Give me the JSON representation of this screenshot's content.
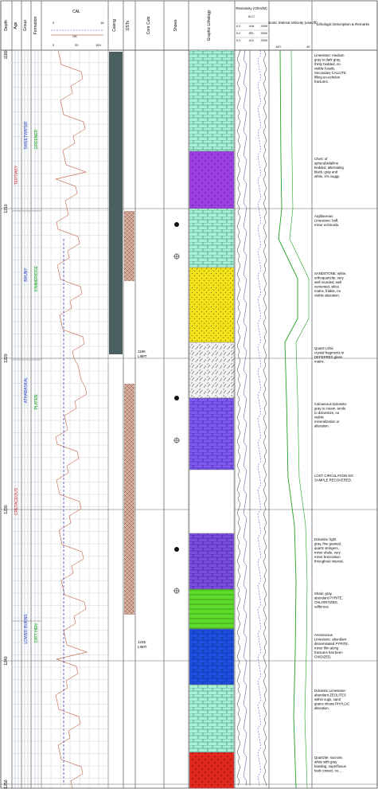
{
  "columns": {
    "depth": "Depth",
    "age": "Age",
    "group": "Group",
    "formation": "Formation",
    "cal_title": "CAL",
    "cal_scale_top": [
      "0",
      "16"
    ],
    "cal_scale_bottom": [
      "0",
      "20",
      "100"
    ],
    "casing": "Casing",
    "dsts": "DSTs",
    "cores": "Core Cuts",
    "shows": "Shows",
    "lithology": "Graphic Lithology",
    "resistivity_title": "Resistivity (Ohm/M)",
    "resistivity_sub": "ILLC",
    "resistivity_scales": [
      "0.2",
      "ILM",
      "2000",
      "0.2",
      "SFL",
      "2000",
      "0.2",
      "ILD",
      "2000"
    ],
    "sonic_title": "Sonic Interval Velocity (usec/ft)",
    "sonic_scale": [
      "140",
      "40"
    ],
    "description": "Lithologic Description & Remarks"
  },
  "depths": [
    "1180",
    "1210",
    "1220",
    "1230",
    "1240",
    "1250"
  ],
  "age_labels": [
    "TERTIARY",
    "CRETACEOUS"
  ],
  "group_labels": [
    "SWEETWATER",
    "BRUNY",
    "ATHABASKAL",
    "LOWER BURNS"
  ],
  "formation_labels": [
    "GREENER",
    "KIMMERIDGE",
    "PLATEN",
    "DIRT HEN"
  ],
  "core_labels": [
    "1196 LIMIT",
    "1246 LIMIT"
  ],
  "lithology": [
    {
      "type": "limestone",
      "color": "#a8f0d8"
    },
    {
      "type": "chert",
      "color": "#9b3fe0"
    },
    {
      "type": "limestone",
      "color": "#a8f0d8"
    },
    {
      "type": "sandstone",
      "color": "#f2e21a"
    },
    {
      "type": "conglomerate",
      "color": "#f2f2f2"
    },
    {
      "type": "dolomite",
      "color": "#7f5af0"
    },
    {
      "type": "lost",
      "color": "#ffffff"
    },
    {
      "type": "dolomite",
      "color": "#7a4fe0"
    },
    {
      "type": "shale",
      "color": "#5ddb2a"
    },
    {
      "type": "limestone",
      "color": "#1f4fe0"
    },
    {
      "type": "limestone",
      "color": "#a8f0d8"
    },
    {
      "type": "quartzite",
      "color": "#e0281e"
    }
  ],
  "descriptions": [
    {
      "text": "Limestone: medium gray to dark gray, thinly bedded, no visible fossils. Secondary CALCITE filling en-echelon fractures."
    },
    {
      "text": "Chert: of spheruloidal/ine bedded, alternating black, gray and white, 1% vuggy."
    },
    {
      "text": "Argillaceous Limestone: buff, minor echinoids."
    },
    {
      "text": "SANDSTONE: white, orthoquartzite, very well rounded, well cemented, silica matrix, friable, no visible alteration."
    },
    {
      "text": "Quartz Lithic crystal fragments in DEFERRED glass matrix."
    },
    {
      "text": "Calcareous Dolomite: gray to cream, tends to dolomitize, no visible mineralization or alteration."
    },
    {
      "text": "LOST CIRCULATION NO SAMPLE RECOVERED."
    },
    {
      "text": "Dolomite: light gray, fine grained, quartz stringers, minor shale, very minor brecciation throughout interval."
    },
    {
      "text": "Shale: gray, abundant PYRITE, CHLORITIZED, odiferous."
    },
    {
      "text": "Arenaceous Limestone: abundant disseminated PYRITE, minor film along fractures has been OXIDIZED."
    },
    {
      "text": "Dolomitic Limestone: abundant ZEOLITES within vugs, sand grains shows PHYLLIC alteration."
    },
    {
      "text": "Quartzite: sucrose, white with gray banding, superfluous fault contact, no..."
    }
  ],
  "colors": {
    "cal_curve": "#c87860",
    "dashed_curve": "#3040c0",
    "age_text": "#d03030",
    "group_text": "#2040c0",
    "formation_text": "#10a010",
    "casing": "#4a6060",
    "dst": "#c8a090",
    "sonic": "#20a020",
    "resistivity": "#303030"
  }
}
